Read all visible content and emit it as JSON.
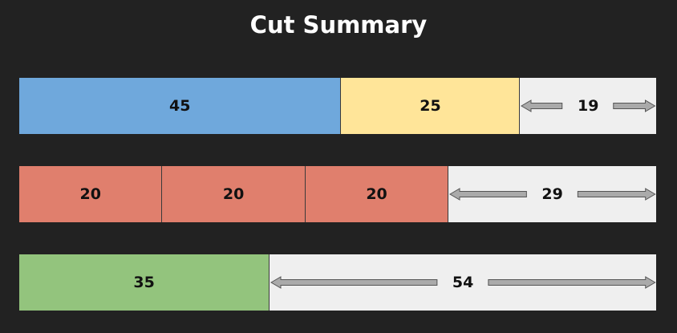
{
  "title": "Cut Summary",
  "colors": {
    "background": "#222222",
    "blue": "#6fa8dc",
    "yellow": "#ffe599",
    "red": "#e07f6d",
    "green": "#93c47d",
    "remainder": "#efefef",
    "arrow": "#aaaaaa"
  },
  "stock_length": 89,
  "bars": [
    {
      "pieces": [
        {
          "length": 45,
          "label": "45",
          "color": "#6fa8dc"
        },
        {
          "length": 25,
          "label": "25",
          "color": "#ffe599"
        }
      ],
      "remainder": {
        "length": 19,
        "label": "19"
      }
    },
    {
      "pieces": [
        {
          "length": 20,
          "label": "20",
          "color": "#e07f6d"
        },
        {
          "length": 20,
          "label": "20",
          "color": "#e07f6d"
        },
        {
          "length": 20,
          "label": "20",
          "color": "#e07f6d"
        }
      ],
      "remainder": {
        "length": 29,
        "label": "29"
      }
    },
    {
      "pieces": [
        {
          "length": 35,
          "label": "35",
          "color": "#93c47d"
        }
      ],
      "remainder": {
        "length": 54,
        "label": "54"
      }
    }
  ]
}
